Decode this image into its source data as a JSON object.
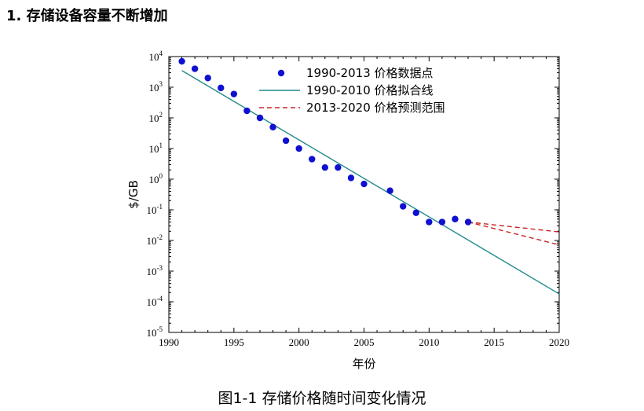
{
  "page": {
    "heading": "1. 存储设备容量不断增加",
    "caption": "图1-1 存储价格随时间变化情况"
  },
  "chart_data": {
    "type": "scatter",
    "xlabel": "年份",
    "ylabel": "$/GB",
    "xlim": [
      1990,
      2020
    ],
    "ylim_log10": [
      -5,
      4
    ],
    "y_scale": "log",
    "x_ticks": [
      "1990",
      "1995",
      "2000",
      "2005",
      "2010",
      "2015",
      "2020"
    ],
    "y_ticks": [
      {
        "base": "10",
        "exp": "4"
      },
      {
        "base": "10",
        "exp": "3"
      },
      {
        "base": "10",
        "exp": "2"
      },
      {
        "base": "10",
        "exp": "1"
      },
      {
        "base": "10",
        "exp": "0"
      },
      {
        "base": "10",
        "exp": "-1"
      },
      {
        "base": "10",
        "exp": "-2"
      },
      {
        "base": "10",
        "exp": "-3"
      },
      {
        "base": "10",
        "exp": "-4"
      },
      {
        "base": "10",
        "exp": "-5"
      }
    ],
    "legend_position": "top-center",
    "series": [
      {
        "name": "1990-2013 价格数据点",
        "kind": "points",
        "color": "#1010d0",
        "x": [
          1991,
          1992,
          1993,
          1994,
          1995,
          1996,
          1997,
          1998,
          1999,
          2000,
          2001,
          2002,
          2003,
          2004,
          2005,
          2007,
          2008,
          2009,
          2010,
          2011,
          2012,
          2013
        ],
        "y": [
          7000,
          4000,
          2000,
          950,
          600,
          170,
          100,
          50,
          18,
          10,
          4.5,
          2.4,
          2.4,
          1.1,
          0.7,
          0.42,
          0.13,
          0.08,
          0.04,
          0.04,
          0.05,
          0.04
        ]
      },
      {
        "name": "1990-2010 价格拟合线",
        "kind": "line",
        "color": "#1f8a8a",
        "x": [
          1991,
          2020
        ],
        "y": [
          3500,
          0.00018
        ]
      },
      {
        "name": "2013-2020 价格预测范围",
        "kind": "dashed-range",
        "color": "#cc2222",
        "upper": {
          "x": [
            2013,
            2020
          ],
          "y": [
            0.04,
            0.019
          ]
        },
        "lower": {
          "x": [
            2013,
            2020
          ],
          "y": [
            0.04,
            0.0072
          ]
        }
      }
    ]
  }
}
